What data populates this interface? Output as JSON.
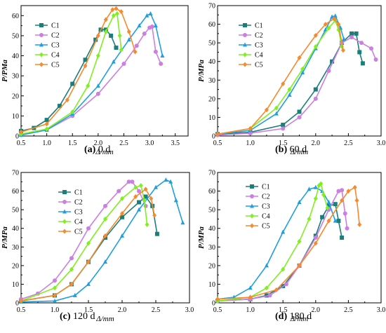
{
  "series_styles": [
    {
      "name": "C1",
      "color": "#1a7f7a",
      "marker": "square"
    },
    {
      "name": "C2",
      "color": "#cc7fe0",
      "marker": "circle"
    },
    {
      "name": "C3",
      "color": "#1e9fe0",
      "marker": "triangle"
    },
    {
      "name": "C4",
      "color": "#7fef1f",
      "marker": "diamond"
    },
    {
      "name": "C5",
      "color": "#f58a2e",
      "marker": "diamond"
    }
  ],
  "chart_data": [
    {
      "type": "line",
      "caption_label": "(a)",
      "caption_text": " 0 d",
      "xlabel": "Δ/mm",
      "ylabel": "P/PMa",
      "xlim": [
        0.5,
        3.75
      ],
      "ylim": [
        0,
        65
      ],
      "xticks": [
        0.5,
        1.0,
        1.5,
        2.0,
        2.5,
        3.0,
        3.5
      ],
      "xtick_labels": [
        "0.5",
        "1.0",
        "1.5",
        "2.0",
        "2.5",
        "3.0",
        "3.5"
      ],
      "yticks": [
        0,
        10,
        20,
        30,
        40,
        50,
        60
      ],
      "ytick_labels": [
        "0",
        "10",
        "20",
        "30",
        "40",
        "50",
        "60"
      ],
      "legend_position": "top-left",
      "series": [
        {
          "name": "C1",
          "points": [
            [
              0.5,
              2.5
            ],
            [
              0.75,
              4
            ],
            [
              1.0,
              8
            ],
            [
              1.25,
              15
            ],
            [
              1.5,
              26
            ],
            [
              1.75,
              38
            ],
            [
              1.95,
              48
            ],
            [
              2.05,
              53
            ],
            [
              2.15,
              53
            ],
            [
              2.25,
              50
            ],
            [
              2.35,
              44
            ]
          ]
        },
        {
          "name": "C2",
          "points": [
            [
              0.5,
              0.5
            ],
            [
              1.0,
              3
            ],
            [
              1.5,
              10
            ],
            [
              2.0,
              21
            ],
            [
              2.5,
              36
            ],
            [
              2.75,
              45
            ],
            [
              2.9,
              51
            ],
            [
              3.0,
              54
            ],
            [
              3.05,
              54.5
            ],
            [
              3.12,
              42
            ],
            [
              3.22,
              36
            ]
          ]
        },
        {
          "name": "C3",
          "points": [
            [
              0.5,
              0.5
            ],
            [
              1.0,
              3
            ],
            [
              1.5,
              11
            ],
            [
              2.0,
              25
            ],
            [
              2.3,
              37
            ],
            [
              2.6,
              48
            ],
            [
              2.8,
              55
            ],
            [
              2.95,
              60
            ],
            [
              3.02,
              61
            ],
            [
              3.12,
              55
            ],
            [
              3.25,
              40
            ]
          ]
        },
        {
          "name": "C4",
          "points": [
            [
              0.5,
              1
            ],
            [
              1.0,
              3.5
            ],
            [
              1.5,
              12
            ],
            [
              1.8,
              25
            ],
            [
              2.0,
              40
            ],
            [
              2.15,
              52
            ],
            [
              2.3,
              60
            ],
            [
              2.37,
              61
            ],
            [
              2.42,
              50
            ],
            [
              2.45,
              43
            ]
          ]
        },
        {
          "name": "C5",
          "points": [
            [
              0.5,
              2
            ],
            [
              1.0,
              6
            ],
            [
              1.4,
              18
            ],
            [
              1.75,
              35
            ],
            [
              2.0,
              50
            ],
            [
              2.15,
              58
            ],
            [
              2.28,
              63
            ],
            [
              2.35,
              63.5
            ],
            [
              2.45,
              62
            ],
            [
              2.6,
              52
            ],
            [
              2.72,
              42
            ]
          ]
        }
      ]
    },
    {
      "type": "line",
      "caption_label": "(b)",
      "caption_text": " 60 d",
      "xlabel": "Δ/mm",
      "ylabel": "P/MPa",
      "xlim": [
        0.5,
        3.0
      ],
      "ylim": [
        0,
        70
      ],
      "xticks": [
        0.5,
        1.0,
        1.5,
        2.0,
        2.5,
        3.0
      ],
      "xtick_labels": [
        "0.5",
        "1.0",
        "1.5",
        "2.0",
        "2.5",
        "3.0"
      ],
      "yticks": [
        0,
        10,
        20,
        30,
        40,
        50,
        60,
        70
      ],
      "ytick_labels": [
        "0",
        "10",
        "20",
        "30",
        "40",
        "50",
        "60",
        "70"
      ],
      "legend_position": "top-left",
      "series": [
        {
          "name": "C1",
          "points": [
            [
              0.5,
              1
            ],
            [
              1.0,
              2
            ],
            [
              1.5,
              6
            ],
            [
              1.75,
              13
            ],
            [
              2.0,
              25
            ],
            [
              2.25,
              40
            ],
            [
              2.4,
              50
            ],
            [
              2.55,
              55
            ],
            [
              2.62,
              55
            ],
            [
              2.67,
              45
            ],
            [
              2.72,
              39
            ]
          ]
        },
        {
          "name": "C2",
          "points": [
            [
              0.5,
              0.5
            ],
            [
              1.0,
              1.5
            ],
            [
              1.5,
              4
            ],
            [
              1.75,
              10
            ],
            [
              2.0,
              20
            ],
            [
              2.2,
              35
            ],
            [
              2.4,
              50
            ],
            [
              2.55,
              53
            ],
            [
              2.7,
              50
            ],
            [
              2.85,
              47
            ],
            [
              2.92,
              41
            ]
          ]
        },
        {
          "name": "C3",
          "points": [
            [
              0.5,
              1
            ],
            [
              1.0,
              3
            ],
            [
              1.4,
              12
            ],
            [
              1.6,
              22
            ],
            [
              1.8,
              34
            ],
            [
              2.0,
              47
            ],
            [
              2.15,
              57
            ],
            [
              2.25,
              64
            ],
            [
              2.3,
              64.5
            ],
            [
              2.38,
              58
            ],
            [
              2.43,
              52
            ]
          ]
        },
        {
          "name": "C4",
          "points": [
            [
              0.5,
              1
            ],
            [
              1.0,
              4
            ],
            [
              1.4,
              15
            ],
            [
              1.6,
              25
            ],
            [
              1.8,
              36
            ],
            [
              2.0,
              48
            ],
            [
              2.2,
              58
            ],
            [
              2.3,
              62
            ],
            [
              2.35,
              57
            ],
            [
              2.4,
              48
            ]
          ]
        },
        {
          "name": "C5",
          "points": [
            [
              0.5,
              1
            ],
            [
              1.0,
              4
            ],
            [
              1.25,
              14
            ],
            [
              1.5,
              28
            ],
            [
              1.75,
              42
            ],
            [
              2.0,
              54
            ],
            [
              2.15,
              60
            ],
            [
              2.28,
              63
            ],
            [
              2.35,
              60
            ],
            [
              2.42,
              46
            ]
          ]
        }
      ]
    },
    {
      "type": "line",
      "caption_label": "(c)",
      "caption_text": " 120 d",
      "xlabel": "Δ/mm",
      "ylabel": "P/MPa",
      "xlim": [
        0.5,
        3.0
      ],
      "ylim": [
        0,
        70
      ],
      "xticks": [
        0.5,
        1.0,
        1.5,
        2.0,
        2.5,
        3.0
      ],
      "xtick_labels": [
        "0.5",
        "1.0",
        "1.5",
        "2.0",
        "2.5",
        "3.0"
      ],
      "yticks": [
        0,
        10,
        20,
        30,
        40,
        50,
        60,
        70
      ],
      "ytick_labels": [
        "0",
        "10",
        "20",
        "30",
        "40",
        "50",
        "60",
        "70"
      ],
      "legend_position": "top-left",
      "series": [
        {
          "name": "C1",
          "points": [
            [
              0.5,
              1
            ],
            [
              1.0,
              4
            ],
            [
              1.25,
              10
            ],
            [
              1.5,
              22
            ],
            [
              1.75,
              35
            ],
            [
              2.0,
              46
            ],
            [
              2.25,
              54
            ],
            [
              2.35,
              57
            ],
            [
              2.45,
              52
            ],
            [
              2.52,
              37
            ]
          ]
        },
        {
          "name": "C2",
          "points": [
            [
              0.5,
              2
            ],
            [
              0.75,
              5
            ],
            [
              1.0,
              12
            ],
            [
              1.25,
              24
            ],
            [
              1.5,
              40
            ],
            [
              1.75,
              52
            ],
            [
              1.95,
              60
            ],
            [
              2.1,
              65
            ],
            [
              2.15,
              65
            ],
            [
              2.25,
              60
            ],
            [
              2.35,
              52
            ]
          ]
        },
        {
          "name": "C3",
          "points": [
            [
              0.5,
              0.5
            ],
            [
              1.0,
              1
            ],
            [
              1.3,
              4
            ],
            [
              1.5,
              10
            ],
            [
              1.75,
              22
            ],
            [
              2.0,
              36
            ],
            [
              2.25,
              50
            ],
            [
              2.5,
              62
            ],
            [
              2.65,
              66
            ],
            [
              2.72,
              65
            ],
            [
              2.8,
              55
            ],
            [
              2.9,
              43
            ]
          ]
        },
        {
          "name": "C4",
          "points": [
            [
              0.5,
              1
            ],
            [
              1.0,
              8
            ],
            [
              1.25,
              18
            ],
            [
              1.5,
              32
            ],
            [
              1.75,
              45
            ],
            [
              2.0,
              56
            ],
            [
              2.2,
              62
            ],
            [
              2.28,
              63
            ],
            [
              2.33,
              55
            ],
            [
              2.37,
              42
            ]
          ]
        },
        {
          "name": "C5",
          "points": [
            [
              0.5,
              1
            ],
            [
              1.0,
              4
            ],
            [
              1.25,
              10
            ],
            [
              1.5,
              22
            ],
            [
              1.75,
              36
            ],
            [
              2.0,
              48
            ],
            [
              2.2,
              57
            ],
            [
              2.35,
              61
            ],
            [
              2.43,
              56
            ],
            [
              2.48,
              47
            ]
          ]
        }
      ]
    },
    {
      "type": "line",
      "caption_label": "(d)",
      "caption_text": " 180 d",
      "xlabel": "Δ/mm",
      "ylabel": "P/MPa",
      "xlim": [
        0.5,
        3.0
      ],
      "ylim": [
        0,
        70
      ],
      "xticks": [
        0.5,
        1.0,
        1.5,
        2.0,
        2.5,
        3.0
      ],
      "xtick_labels": [
        "0.5",
        "1.0",
        "1.5",
        "2.0",
        "2.5",
        "3.0"
      ],
      "yticks": [
        0,
        10,
        20,
        30,
        40,
        50,
        60,
        70
      ],
      "ytick_labels": [
        "0",
        "10",
        "20",
        "30",
        "40",
        "50",
        "60",
        "70"
      ],
      "legend_position": "top-left",
      "series": [
        {
          "name": "C1",
          "points": [
            [
              0.5,
              1
            ],
            [
              1.0,
              2
            ],
            [
              1.25,
              4
            ],
            [
              1.5,
              9
            ],
            [
              1.75,
              20
            ],
            [
              2.0,
              36
            ],
            [
              2.1,
              46
            ],
            [
              2.2,
              52
            ],
            [
              2.3,
              53
            ],
            [
              2.35,
              44
            ],
            [
              2.4,
              35
            ]
          ]
        },
        {
          "name": "C2",
          "points": [
            [
              0.5,
              1
            ],
            [
              1.0,
              2
            ],
            [
              1.3,
              4
            ],
            [
              1.55,
              10
            ],
            [
              1.75,
              20
            ],
            [
              2.0,
              35
            ],
            [
              2.2,
              50
            ],
            [
              2.35,
              60
            ],
            [
              2.4,
              60.5
            ],
            [
              2.45,
              48
            ],
            [
              2.48,
              40
            ]
          ]
        },
        {
          "name": "C3",
          "points": [
            [
              0.5,
              2
            ],
            [
              0.75,
              3
            ],
            [
              1.0,
              8
            ],
            [
              1.25,
              20
            ],
            [
              1.5,
              38
            ],
            [
              1.75,
              54
            ],
            [
              1.9,
              61
            ],
            [
              2.0,
              62
            ],
            [
              2.1,
              60
            ],
            [
              2.2,
              54
            ],
            [
              2.3,
              44
            ]
          ]
        },
        {
          "name": "C4",
          "points": [
            [
              0.5,
              1
            ],
            [
              1.0,
              3
            ],
            [
              1.25,
              8
            ],
            [
              1.5,
              18
            ],
            [
              1.75,
              33
            ],
            [
              1.9,
              45
            ],
            [
              2.0,
              56
            ],
            [
              2.05,
              63
            ],
            [
              2.08,
              64
            ],
            [
              2.12,
              58
            ],
            [
              2.18,
              51
            ]
          ]
        },
        {
          "name": "C5",
          "points": [
            [
              0.5,
              2
            ],
            [
              1.0,
              3
            ],
            [
              1.4,
              7
            ],
            [
              1.75,
              20
            ],
            [
              2.0,
              32
            ],
            [
              2.2,
              44
            ],
            [
              2.4,
              55
            ],
            [
              2.5,
              60
            ],
            [
              2.6,
              62
            ],
            [
              2.63,
              55
            ],
            [
              2.67,
              42
            ]
          ]
        }
      ]
    }
  ]
}
